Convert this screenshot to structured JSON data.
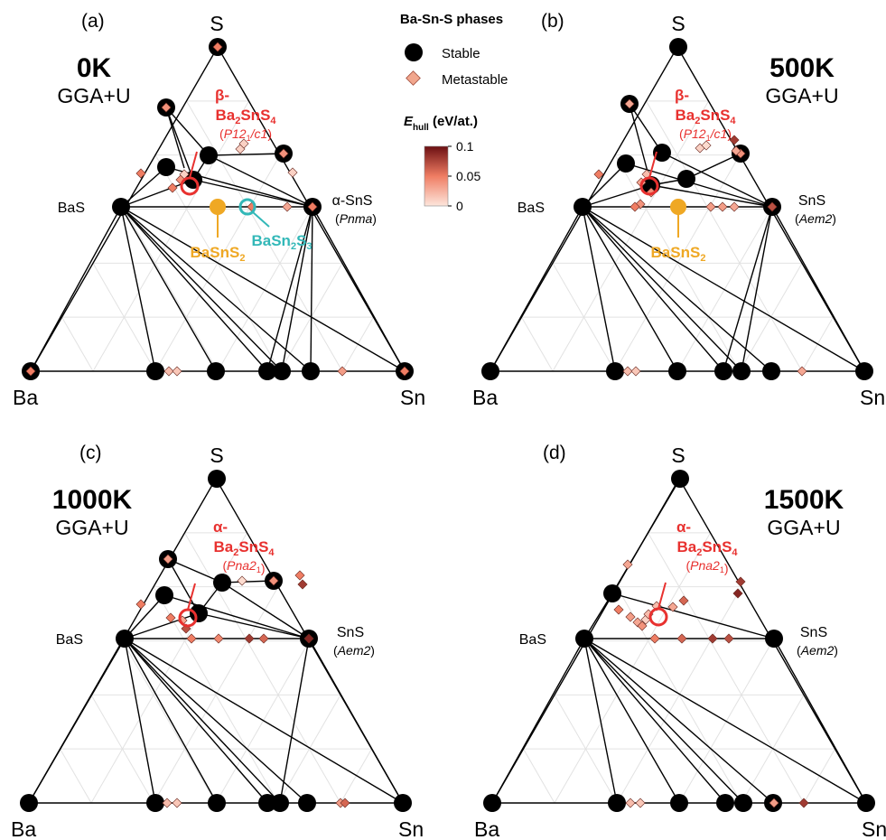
{
  "legend": {
    "title": "Ba-Sn-S phases",
    "stable": "Stable",
    "metastable": "Metastable",
    "colorbar_label": "E",
    "colorbar_sub": "hull",
    "colorbar_unit": " (eV/at.)",
    "ticks": [
      "0.1",
      "0.05",
      "0"
    ],
    "cmap_low": "#fde6dc",
    "cmap_mid": "#ef7d63",
    "cmap_high": "#6b0f12"
  },
  "colors": {
    "beta": "#e8312f",
    "baSnS2": "#efa824",
    "baSn2S3": "#33b8b8",
    "stable": "#000000"
  },
  "panels": [
    {
      "letter": "(a)",
      "temp": "0K",
      "method": "GGA+U",
      "vertex_S": "S",
      "vertex_Ba": "Ba",
      "vertex_Sn": "Sn",
      "BaS": "BaS",
      "SnS_name": "α-SnS",
      "SnS_group": "Pnma",
      "ba2sns4_prefix": "β-",
      "ba2sns4_group": "P12",
      "ba2sns4_group_b": "/c1",
      "show_BaSnS2": true,
      "show_BaSn2S3": true,
      "BaSnS2": "BaSnS",
      "BaSn2S3": "BaSn",
      "BaSn2S3_b": "S"
    },
    {
      "letter": "(b)",
      "temp": "500K",
      "method": "GGA+U",
      "vertex_S": "S",
      "vertex_Ba": "Ba",
      "vertex_Sn": "Sn",
      "BaS": "BaS",
      "SnS_name": "SnS",
      "SnS_group": "Aem2",
      "ba2sns4_prefix": "β-",
      "ba2sns4_group": "P12",
      "ba2sns4_group_b": "/c1",
      "show_BaSnS2": true,
      "show_BaSn2S3": false,
      "BaSnS2": "BaSnS"
    },
    {
      "letter": "(c)",
      "temp": "1000K",
      "method": "GGA+U",
      "vertex_S": "S",
      "vertex_Ba": "Ba",
      "vertex_Sn": "Sn",
      "BaS": "BaS",
      "SnS_name": "SnS",
      "SnS_group": "Aem2",
      "ba2sns4_prefix": "α-",
      "ba2sns4_group": "Pna2",
      "ba2sns4_group_b": "",
      "show_BaSnS2": false,
      "show_BaSn2S3": false
    },
    {
      "letter": "(d)",
      "temp": "1500K",
      "method": "GGA+U",
      "vertex_S": "S",
      "vertex_Ba": "Ba",
      "vertex_Sn": "Sn",
      "BaS": "BaS",
      "SnS_name": "SnS",
      "SnS_group": "Aem2",
      "ba2sns4_prefix": "α-",
      "ba2sns4_group": "Pna2",
      "ba2sns4_group_b": "",
      "show_BaSnS2": false,
      "show_BaSn2S3": false
    }
  ]
}
